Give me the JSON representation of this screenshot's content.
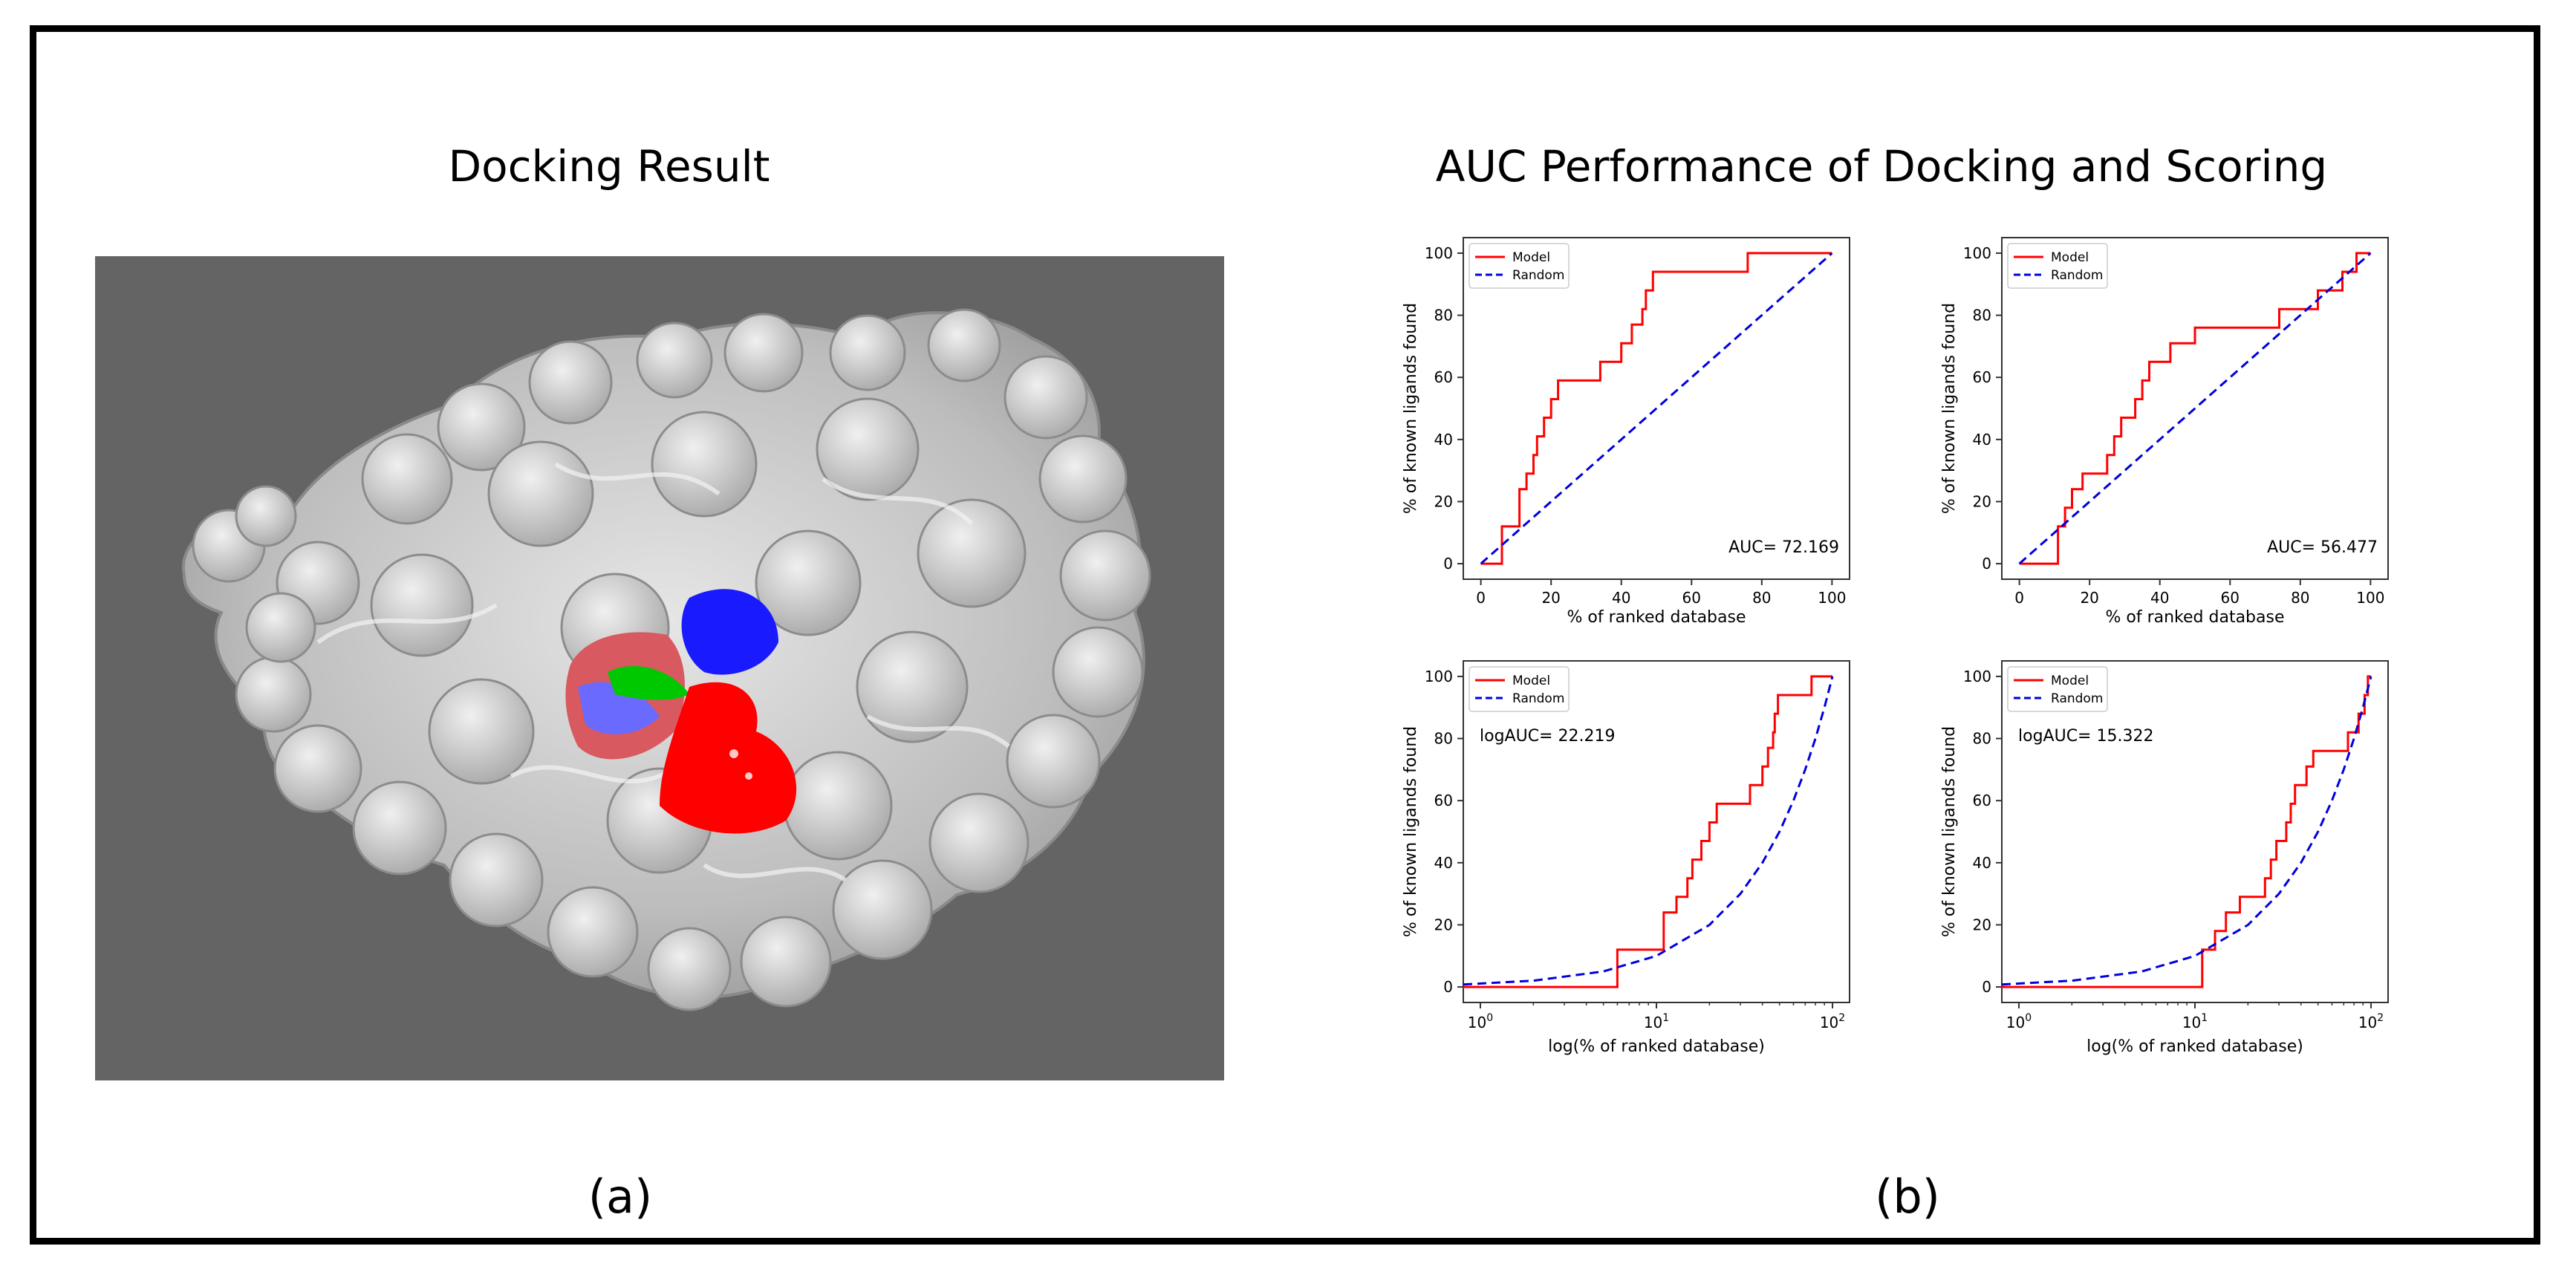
{
  "panel_a": {
    "title": "Docking Result",
    "caption": "(a)"
  },
  "panel_b": {
    "title": "AUC Performance of Docking and Scoring",
    "caption": "(b)"
  },
  "colors": {
    "background": "#ffffff",
    "render_background": "#646464",
    "protein_surface": "#c8c8c8",
    "ligand_blue": "#1a1aff",
    "ligand_red": "#ff0000",
    "ligand_green": "#00c800",
    "model_line": "#ff0000",
    "random_line": "#0000dd"
  },
  "chart_data": [
    {
      "type": "line",
      "position": "top-left",
      "xscale": "linear",
      "xlabel": "% of ranked database",
      "ylabel": "% of known ligands found",
      "xlim": [
        -5,
        105
      ],
      "ylim": [
        -5,
        105
      ],
      "xticks": [
        "0",
        "20",
        "40",
        "60",
        "80",
        "100"
      ],
      "yticks": [
        "0",
        "20",
        "40",
        "60",
        "80",
        "100"
      ],
      "legend": "top-left",
      "annotation": "AUC= 72.169",
      "series": [
        {
          "name": "Model",
          "style": "solid",
          "x": [
            0,
            6,
            6,
            11,
            11,
            13,
            13,
            15,
            15,
            16,
            16,
            18,
            18,
            20,
            20,
            22,
            22,
            34,
            34,
            40,
            40,
            43,
            43,
            46,
            46,
            47,
            47,
            49,
            49,
            76,
            76,
            100
          ],
          "y": [
            0,
            0,
            12,
            12,
            24,
            24,
            29,
            29,
            35,
            35,
            41,
            41,
            47,
            47,
            53,
            53,
            59,
            59,
            65,
            65,
            71,
            71,
            77,
            77,
            82,
            82,
            88,
            88,
            94,
            94,
            100,
            100
          ]
        },
        {
          "name": "Random",
          "style": "dashed",
          "x": [
            0,
            100
          ],
          "y": [
            0,
            100
          ]
        }
      ]
    },
    {
      "type": "line",
      "position": "top-right",
      "xscale": "linear",
      "xlabel": "% of ranked database",
      "ylabel": "% of known ligands found",
      "xlim": [
        -5,
        105
      ],
      "ylim": [
        -5,
        105
      ],
      "xticks": [
        "0",
        "20",
        "40",
        "60",
        "80",
        "100"
      ],
      "yticks": [
        "0",
        "20",
        "40",
        "60",
        "80",
        "100"
      ],
      "legend": "top-left",
      "annotation": "AUC= 56.477",
      "series": [
        {
          "name": "Model",
          "style": "solid",
          "x": [
            0,
            11,
            11,
            13,
            13,
            15,
            15,
            18,
            18,
            25,
            25,
            27,
            27,
            29,
            29,
            33,
            33,
            35,
            35,
            37,
            37,
            43,
            43,
            47,
            47,
            50,
            50,
            53,
            53,
            74,
            74,
            80,
            80,
            85,
            85,
            92,
            92,
            96,
            96,
            100
          ],
          "y": [
            0,
            0,
            12,
            12,
            18,
            18,
            24,
            24,
            29,
            29,
            35,
            35,
            41,
            41,
            47,
            47,
            53,
            53,
            59,
            59,
            65,
            65,
            71,
            71,
            71,
            71,
            76,
            76,
            76,
            76,
            82,
            82,
            82,
            82,
            88,
            88,
            94,
            94,
            100,
            100
          ]
        },
        {
          "name": "Random",
          "style": "dashed",
          "x": [
            0,
            100
          ],
          "y": [
            0,
            100
          ]
        }
      ]
    },
    {
      "type": "line",
      "position": "bottom-left",
      "xscale": "log",
      "xlabel": "log(% of ranked database)",
      "ylabel": "% of known ligands found",
      "xlim": [
        0.8,
        125
      ],
      "ylim": [
        -5,
        105
      ],
      "xticks": [
        1,
        10,
        100
      ],
      "yticks": [
        "0",
        "20",
        "40",
        "60",
        "80",
        "100"
      ],
      "legend": "top-left",
      "annotation": "logAUC= 22.219",
      "series": [
        {
          "name": "Model",
          "style": "solid",
          "x": [
            0.8,
            6,
            6,
            11,
            11,
            13,
            13,
            15,
            15,
            16,
            16,
            18,
            18,
            20,
            20,
            22,
            22,
            34,
            34,
            40,
            40,
            43,
            43,
            46,
            46,
            47,
            47,
            49,
            49,
            76,
            76,
            100
          ],
          "y": [
            0,
            0,
            12,
            12,
            24,
            24,
            29,
            29,
            35,
            35,
            41,
            41,
            47,
            47,
            53,
            53,
            59,
            59,
            65,
            65,
            71,
            71,
            77,
            77,
            82,
            82,
            88,
            88,
            94,
            94,
            100,
            100
          ]
        },
        {
          "name": "Random",
          "style": "dashed",
          "x": [
            0.8,
            2,
            5,
            10,
            20,
            30,
            40,
            50,
            60,
            70,
            80,
            90,
            100
          ],
          "y": [
            0.8,
            2,
            5,
            10,
            20,
            30,
            40,
            50,
            60,
            70,
            80,
            90,
            100
          ]
        }
      ]
    },
    {
      "type": "line",
      "position": "bottom-right",
      "xscale": "log",
      "xlabel": "log(% of ranked database)",
      "ylabel": "% of known ligands found",
      "xlim": [
        0.8,
        125
      ],
      "ylim": [
        -5,
        105
      ],
      "xticks": [
        1,
        10,
        100
      ],
      "yticks": [
        "0",
        "20",
        "40",
        "60",
        "80",
        "100"
      ],
      "legend": "top-left",
      "annotation": "logAUC= 15.322",
      "series": [
        {
          "name": "Model",
          "style": "solid",
          "x": [
            0.8,
            11,
            11,
            13,
            13,
            15,
            15,
            18,
            18,
            25,
            25,
            27,
            27,
            29,
            29,
            33,
            33,
            35,
            35,
            37,
            37,
            43,
            43,
            47,
            47,
            53,
            53,
            74,
            74,
            85,
            85,
            92,
            92,
            96,
            96,
            100
          ],
          "y": [
            0,
            0,
            12,
            12,
            18,
            18,
            24,
            24,
            29,
            29,
            35,
            35,
            41,
            41,
            47,
            47,
            53,
            53,
            59,
            59,
            65,
            65,
            71,
            71,
            76,
            76,
            76,
            76,
            82,
            82,
            88,
            88,
            94,
            94,
            100,
            100
          ]
        },
        {
          "name": "Random",
          "style": "dashed",
          "x": [
            0.8,
            2,
            5,
            10,
            20,
            30,
            40,
            50,
            60,
            70,
            80,
            90,
            100
          ],
          "y": [
            0.8,
            2,
            5,
            10,
            20,
            30,
            40,
            50,
            60,
            70,
            80,
            90,
            100
          ]
        }
      ]
    }
  ]
}
